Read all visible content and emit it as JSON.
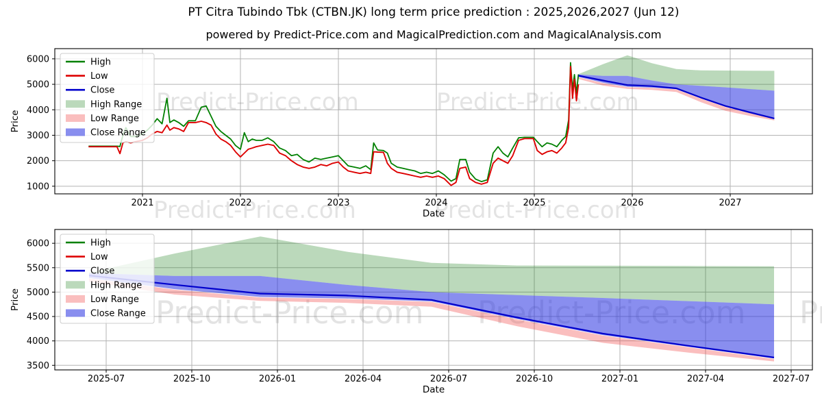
{
  "title": "PT Citra Tubindo Tbk (CTBN.JK) long term price prediction : 2025,2026,2027 (Jun 12)",
  "subtitle": "powered by Predict-Price.com and MagicalPrediction.com and MagicalAnalysis.com",
  "watermark_text": "Predict-Price.com",
  "colors": {
    "high_line": "#008000",
    "low_line": "#dd0000",
    "close_line": "#0000cc",
    "high_range_fill": "rgba(30,130,30,0.30)",
    "low_range_fill": "rgba(240,70,70,0.35)",
    "close_range_fill": "rgba(40,50,225,0.55)",
    "grid": "#b3b3b3",
    "spine": "#000000",
    "tick_text": "#000000",
    "watermark": "rgba(128,128,128,0.22)",
    "legend_border": "#cccccc",
    "legend_bg": "rgba(255,255,255,0.8)"
  },
  "legend": [
    {
      "label": "High",
      "swatch": "line",
      "color_key": "high_line"
    },
    {
      "label": "Low",
      "swatch": "line",
      "color_key": "low_line"
    },
    {
      "label": "Close",
      "swatch": "line",
      "color_key": "close_line"
    },
    {
      "label": "High Range",
      "swatch": "fill",
      "color_key": "high_range_fill"
    },
    {
      "label": "Low Range",
      "swatch": "fill",
      "color_key": "low_range_fill"
    },
    {
      "label": "Close Range",
      "swatch": "fill",
      "color_key": "close_range_fill"
    }
  ],
  "chart_data": {
    "type": "line",
    "prediction": {
      "dates": [
        "2025-06-12",
        "2025-09-12",
        "2025-12-12",
        "2026-03-12",
        "2026-06-12",
        "2026-09-12",
        "2026-12-12",
        "2027-03-12",
        "2027-06-12"
      ],
      "t": [
        2025.45,
        2025.7,
        2025.95,
        2026.2,
        2026.45,
        2026.7,
        2026.95,
        2027.2,
        2027.45
      ],
      "close": [
        5340,
        5150,
        4970,
        4930,
        4840,
        4480,
        4150,
        3900,
        3660
      ],
      "close_range_top": [
        5390,
        5330,
        5330,
        5150,
        5000,
        4940,
        4880,
        4815,
        4750
      ],
      "close_range_bottom": [
        5290,
        5060,
        4900,
        4870,
        4810,
        4450,
        4120,
        3880,
        3640
      ],
      "high_range_top": [
        5400,
        5790,
        6140,
        5830,
        5600,
        5545,
        5540,
        5535,
        5530
      ],
      "high_range_bottom": [
        5390,
        5330,
        5330,
        5150,
        5000,
        4940,
        4880,
        4815,
        4750
      ],
      "low_range_top": [
        5280,
        5050,
        4890,
        4860,
        4800,
        4440,
        4110,
        3870,
        3630
      ],
      "low_range_bottom": [
        5210,
        4950,
        4820,
        4780,
        4700,
        4300,
        3960,
        3760,
        3580
      ]
    },
    "history": {
      "columns": [
        "t",
        "low",
        "high"
      ],
      "points": [
        [
          2020.45,
          2550,
          2570
        ],
        [
          2020.6,
          2550,
          2570
        ],
        [
          2020.74,
          2550,
          2570
        ],
        [
          2020.77,
          2280,
          2560
        ],
        [
          2020.8,
          2700,
          3000
        ],
        [
          2020.83,
          2750,
          3300
        ],
        [
          2020.88,
          2700,
          2950
        ],
        [
          2020.93,
          2750,
          2950
        ],
        [
          2021.0,
          2800,
          3050
        ],
        [
          2021.05,
          2900,
          3200
        ],
        [
          2021.1,
          3050,
          3400
        ],
        [
          2021.15,
          3150,
          3650
        ],
        [
          2021.2,
          3100,
          3450
        ],
        [
          2021.25,
          3400,
          4450
        ],
        [
          2021.28,
          3200,
          3500
        ],
        [
          2021.32,
          3300,
          3600
        ],
        [
          2021.37,
          3250,
          3500
        ],
        [
          2021.42,
          3150,
          3350
        ],
        [
          2021.47,
          3500,
          3570
        ],
        [
          2021.54,
          3500,
          3570
        ],
        [
          2021.6,
          3550,
          4100
        ],
        [
          2021.65,
          3500,
          4150
        ],
        [
          2021.7,
          3400,
          3750
        ],
        [
          2021.75,
          3050,
          3350
        ],
        [
          2021.8,
          2850,
          3150
        ],
        [
          2021.85,
          2750,
          3000
        ],
        [
          2021.9,
          2600,
          2850
        ],
        [
          2021.95,
          2350,
          2600
        ],
        [
          2022.0,
          2150,
          2450
        ],
        [
          2022.04,
          2300,
          3100
        ],
        [
          2022.08,
          2450,
          2750
        ],
        [
          2022.12,
          2500,
          2850
        ],
        [
          2022.16,
          2550,
          2800
        ],
        [
          2022.22,
          2600,
          2800
        ],
        [
          2022.28,
          2650,
          2900
        ],
        [
          2022.34,
          2600,
          2750
        ],
        [
          2022.4,
          2300,
          2500
        ],
        [
          2022.46,
          2200,
          2400
        ],
        [
          2022.52,
          2000,
          2200
        ],
        [
          2022.58,
          1850,
          2250
        ],
        [
          2022.64,
          1750,
          2050
        ],
        [
          2022.7,
          1700,
          1950
        ],
        [
          2022.76,
          1750,
          2100
        ],
        [
          2022.82,
          1850,
          2050
        ],
        [
          2022.88,
          1800,
          2100
        ],
        [
          2022.94,
          1900,
          2150
        ],
        [
          2023.0,
          1950,
          2200
        ],
        [
          2023.05,
          1750,
          2000
        ],
        [
          2023.1,
          1600,
          1800
        ],
        [
          2023.16,
          1550,
          1750
        ],
        [
          2023.22,
          1500,
          1700
        ],
        [
          2023.28,
          1550,
          1800
        ],
        [
          2023.33,
          1500,
          1650
        ],
        [
          2023.36,
          2350,
          2700
        ],
        [
          2023.4,
          2340,
          2420
        ],
        [
          2023.46,
          2330,
          2400
        ],
        [
          2023.5,
          1900,
          2300
        ],
        [
          2023.54,
          1700,
          1900
        ],
        [
          2023.6,
          1550,
          1750
        ],
        [
          2023.66,
          1500,
          1700
        ],
        [
          2023.72,
          1450,
          1650
        ],
        [
          2023.78,
          1400,
          1600
        ],
        [
          2023.84,
          1350,
          1500
        ],
        [
          2023.9,
          1400,
          1550
        ],
        [
          2023.96,
          1350,
          1500
        ],
        [
          2024.02,
          1400,
          1600
        ],
        [
          2024.08,
          1300,
          1450
        ],
        [
          2024.15,
          1030,
          1200
        ],
        [
          2024.2,
          1150,
          1300
        ],
        [
          2024.24,
          1700,
          2050
        ],
        [
          2024.3,
          1750,
          2050
        ],
        [
          2024.34,
          1300,
          1550
        ],
        [
          2024.4,
          1150,
          1280
        ],
        [
          2024.46,
          1080,
          1180
        ],
        [
          2024.52,
          1150,
          1250
        ],
        [
          2024.58,
          1900,
          2300
        ],
        [
          2024.63,
          2100,
          2550
        ],
        [
          2024.68,
          2000,
          2300
        ],
        [
          2024.73,
          1900,
          2150
        ],
        [
          2024.78,
          2200,
          2500
        ],
        [
          2024.84,
          2800,
          2900
        ],
        [
          2024.9,
          2870,
          2920
        ],
        [
          2024.99,
          2870,
          2920
        ],
        [
          2025.03,
          2400,
          2750
        ],
        [
          2025.08,
          2250,
          2550
        ],
        [
          2025.13,
          2350,
          2700
        ],
        [
          2025.18,
          2400,
          2650
        ],
        [
          2025.23,
          2300,
          2550
        ],
        [
          2025.28,
          2500,
          2800
        ],
        [
          2025.32,
          2700,
          2950
        ],
        [
          2025.35,
          3300,
          3600
        ],
        [
          2025.37,
          5700,
          5850
        ],
        [
          2025.39,
          4450,
          4800
        ],
        [
          2025.41,
          5200,
          5380
        ],
        [
          2025.43,
          4350,
          4650
        ],
        [
          2025.45,
          5000,
          5390
        ]
      ]
    },
    "panels": [
      {
        "name": "full-history-with-forecast",
        "xlabel": "Date",
        "ylabel": "Price",
        "xlim": [
          2020.105,
          2027.839
        ],
        "ylim": [
          700,
          6400
        ],
        "grid": true,
        "legend_position": "upper-left",
        "has_history": true,
        "xticks": [
          {
            "v": 2021,
            "label": "2021"
          },
          {
            "v": 2022,
            "label": "2022"
          },
          {
            "v": 2023,
            "label": "2023"
          },
          {
            "v": 2024,
            "label": "2024"
          },
          {
            "v": 2025,
            "label": "2025"
          },
          {
            "v": 2026,
            "label": "2026"
          },
          {
            "v": 2027,
            "label": "2027"
          }
        ],
        "yticks": [
          {
            "v": 1000,
            "label": "1000"
          },
          {
            "v": 2000,
            "label": "2000"
          },
          {
            "v": 3000,
            "label": "3000"
          },
          {
            "v": 4000,
            "label": "4000"
          },
          {
            "v": 5000,
            "label": "5000"
          },
          {
            "v": 6000,
            "label": "6000"
          }
        ]
      },
      {
        "name": "forecast-detail",
        "xlabel": "Date",
        "ylabel": "Price",
        "xlim": [
          2025.35,
          2027.562
        ],
        "ylim": [
          3406,
          6283
        ],
        "grid": true,
        "legend_position": "upper-left",
        "has_history": false,
        "xticks": [
          {
            "v": 2025.5,
            "label": "2025-07"
          },
          {
            "v": 2025.75,
            "label": "2025-10"
          },
          {
            "v": 2026.0,
            "label": "2026-01"
          },
          {
            "v": 2026.25,
            "label": "2026-04"
          },
          {
            "v": 2026.5,
            "label": "2026-07"
          },
          {
            "v": 2026.75,
            "label": "2026-10"
          },
          {
            "v": 2027.0,
            "label": "2027-01"
          },
          {
            "v": 2027.25,
            "label": "2027-04"
          },
          {
            "v": 2027.5,
            "label": "2027-07"
          }
        ],
        "yticks": [
          {
            "v": 3500,
            "label": "3500"
          },
          {
            "v": 4000,
            "label": "4000"
          },
          {
            "v": 4500,
            "label": "4500"
          },
          {
            "v": 5000,
            "label": "5000"
          },
          {
            "v": 5500,
            "label": "5500"
          },
          {
            "v": 6000,
            "label": "6000"
          }
        ]
      }
    ]
  }
}
